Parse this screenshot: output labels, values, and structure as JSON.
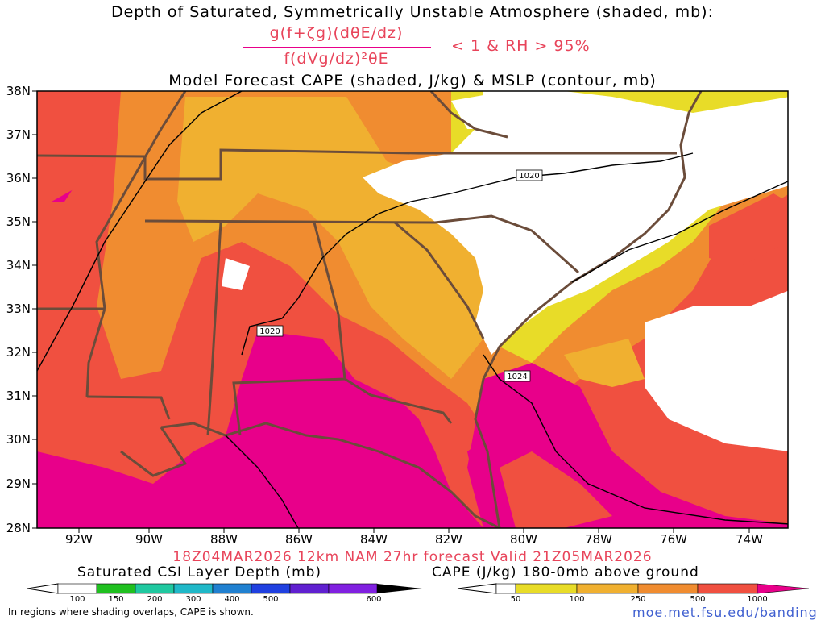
{
  "header": {
    "title_line1": "Depth of Saturated, Symmetrically Unstable Atmosphere (shaded, mb):",
    "formula_numerator": "g(f+ζg)(dθE/dz)",
    "formula_denominator": "f(dVg/dz)²θE",
    "formula_condition": "< 1 & RH > 95%",
    "title_line3": "Model Forecast CAPE (shaded, J/kg) & MSLP (contour, mb)"
  },
  "axes": {
    "lat_labels": [
      "38N",
      "37N",
      "36N",
      "35N",
      "34N",
      "33N",
      "32N",
      "31N",
      "30N",
      "29N",
      "28N"
    ],
    "lon_labels": [
      "92W",
      "90W",
      "88W",
      "86W",
      "84W",
      "82W",
      "80W",
      "78W",
      "76W",
      "74W"
    ]
  },
  "isobars": {
    "labels": [
      "1020",
      "1020",
      "1024"
    ]
  },
  "footer": {
    "valid_line": "18Z04MAR2026 12km NAM 27hr forecast Valid 21Z05MAR2026",
    "csi_label": "Saturated CSI Layer Depth (mb)",
    "cape_label": "CAPE (J/kg) 180-0mb above ground",
    "csi_ticks": [
      "100",
      "150",
      "200",
      "300",
      "400",
      "500",
      "600"
    ],
    "cape_ticks": [
      "50",
      "100",
      "250",
      "500",
      "1000"
    ],
    "note": "In regions where shading overlaps, CAPE is shown.",
    "url": "moe.met.fsu.edu/banding"
  },
  "colors": {
    "cape_50": "#e8dc28",
    "cape_100": "#f0b030",
    "cape_250": "#f08c30",
    "cape_500": "#f05040",
    "cape_1000": "#e8008a",
    "csi_100": "#20c020",
    "csi_150": "#20c8a0",
    "csi_200": "#20b8c8",
    "csi_300": "#2080d0",
    "csi_400": "#2040e0",
    "csi_500": "#6020d0",
    "csi_600": "#000000",
    "border": "#6b4c3a",
    "isobar": "#000000",
    "title_red": "#e8445a",
    "url_blue": "#4060d0"
  }
}
